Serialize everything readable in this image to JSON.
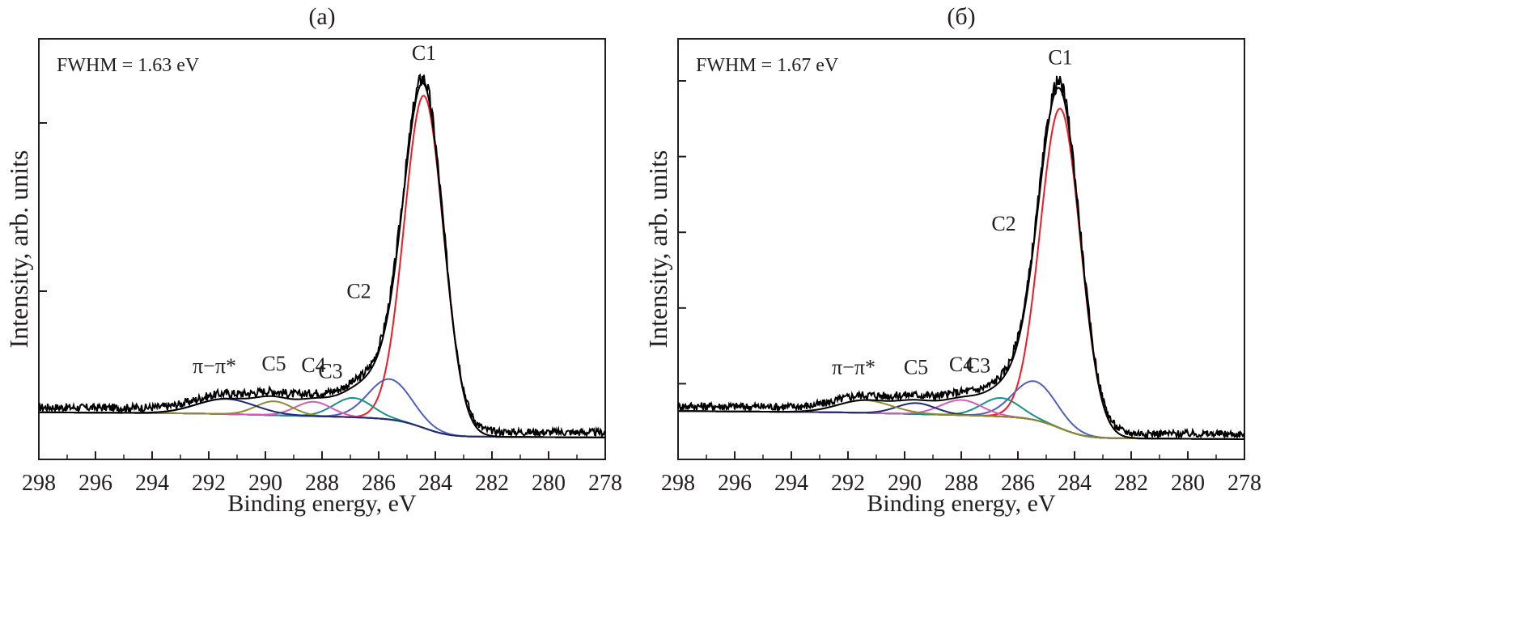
{
  "chart_data": [
    {
      "type": "line",
      "title": "(a)",
      "xlabel": "Binding energy, eV",
      "ylabel": "Intensity, arb. units",
      "xlim": [
        298,
        278
      ],
      "x_reversed": true,
      "xticks": [
        "298",
        "296",
        "294",
        "292",
        "290",
        "288",
        "286",
        "284",
        "282",
        "280",
        "278"
      ],
      "ylim": [
        0,
        100
      ],
      "y_tick_labels": false,
      "y_minor_ticks": [
        40,
        80
      ],
      "grid": false,
      "annotation_fwhm": "FWHM = 1.63 eV",
      "background": {
        "left": 11.2,
        "right": 5.2
      },
      "components": [
        {
          "name": "C1",
          "center": 284.4,
          "fwhm": 1.63,
          "amplitude": 79.0,
          "color": "#ed1c24"
        },
        {
          "name": "C2",
          "center": 285.6,
          "fwhm": 1.8,
          "amplitude": 9.6,
          "color": "#4f5fbd"
        },
        {
          "name": "C3",
          "center": 286.9,
          "fwhm": 1.6,
          "amplitude": 4.6,
          "color": "#16918a"
        },
        {
          "name": "C4",
          "center": 288.3,
          "fwhm": 1.5,
          "amplitude": 3.4,
          "color": "#d65bb8"
        },
        {
          "name": "C5",
          "center": 289.7,
          "fwhm": 1.5,
          "amplitude": 3.3,
          "color": "#8c8c2a"
        },
        {
          "name": "π−π*",
          "center": 291.4,
          "fwhm": 2.4,
          "amplitude": 3.6,
          "color": "#1d2a7a"
        }
      ],
      "envelope_color": "#000000"
    },
    {
      "type": "line",
      "title": "(б)",
      "xlabel": "Binding energy, eV",
      "ylabel": "Intensity, arb. units",
      "xlim": [
        298,
        278
      ],
      "x_reversed": true,
      "xticks": [
        "298",
        "296",
        "294",
        "292",
        "290",
        "288",
        "286",
        "284",
        "282",
        "280",
        "278"
      ],
      "ylim": [
        0,
        100
      ],
      "y_tick_labels": false,
      "y_minor_ticks": [
        18,
        36,
        54,
        72,
        90
      ],
      "grid": false,
      "annotation_fwhm": "FWHM = 1.67 eV",
      "background": {
        "left": 11.5,
        "right": 4.8
      },
      "components": [
        {
          "name": "C1",
          "center": 284.5,
          "fwhm": 1.67,
          "amplitude": 76.0,
          "color": "#ed1c24"
        },
        {
          "name": "C2",
          "center": 285.4,
          "fwhm": 1.8,
          "amplitude": 9.2,
          "color": "#4f5fbd"
        },
        {
          "name": "C3",
          "center": 286.6,
          "fwhm": 1.6,
          "amplitude": 4.4,
          "color": "#16918a"
        },
        {
          "name": "C4",
          "center": 288.0,
          "fwhm": 1.7,
          "amplitude": 3.6,
          "color": "#d65bb8"
        },
        {
          "name": "C5",
          "center": 289.6,
          "fwhm": 1.6,
          "amplitude": 2.6,
          "color": "#1d2a7a"
        },
        {
          "name": "π−π*",
          "center": 291.4,
          "fwhm": 2.2,
          "amplitude": 3.0,
          "color": "#8c8c2a"
        }
      ],
      "envelope_color": "#000000"
    }
  ]
}
